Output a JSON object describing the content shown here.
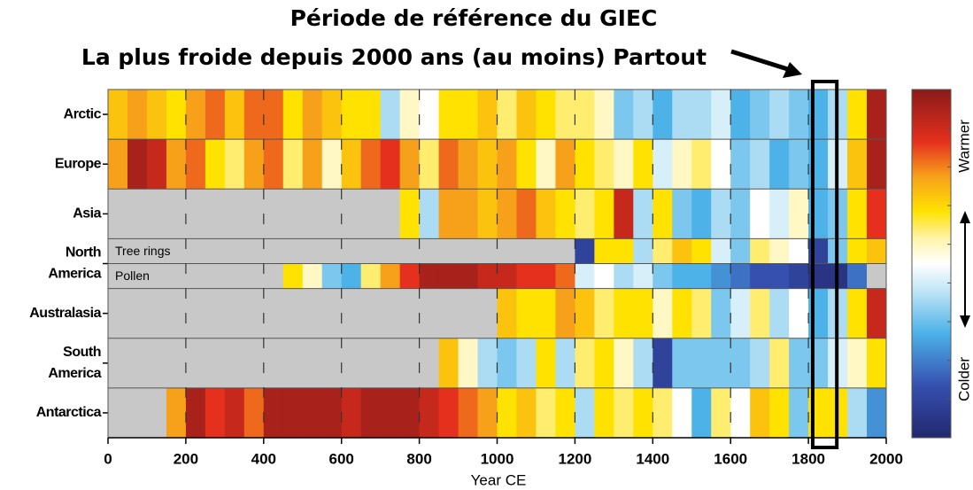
{
  "chart_data": {
    "type": "heatmap",
    "title": "Période de référence du GIEC",
    "subtitle": "La plus froide depuis 2000 ans (au moins) Partout",
    "xlabel": "Year CE",
    "xlim": [
      0,
      2000
    ],
    "xticks": [
      0,
      200,
      400,
      600,
      800,
      1000,
      1200,
      1400,
      1600,
      1800,
      2000
    ],
    "bins": [
      0,
      50,
      100,
      150,
      200,
      250,
      300,
      350,
      400,
      450,
      500,
      550,
      600,
      650,
      700,
      750,
      800,
      850,
      900,
      950,
      1000,
      1050,
      1100,
      1150,
      1200,
      1250,
      1300,
      1350,
      1400,
      1450,
      1500,
      1550,
      1600,
      1650,
      1700,
      1750,
      1800,
      1850,
      1900,
      1950,
      2000
    ],
    "highlight": [
      1811,
      1873
    ],
    "zlim": [
      -1,
      1
    ],
    "colormap": [
      [
        -1,
        "#22286e"
      ],
      [
        -0.7,
        "#3650b0"
      ],
      [
        -0.4,
        "#4cb2e8"
      ],
      [
        -0.15,
        "#c3e7f6"
      ],
      [
        0,
        "#ffffff"
      ],
      [
        0.15,
        "#fff3a6"
      ],
      [
        0.3,
        "#ffe200"
      ],
      [
        0.5,
        "#f7a11b"
      ],
      [
        0.7,
        "#e4301c"
      ],
      [
        1,
        "#8a1a1a"
      ]
    ],
    "no_data_color": "#c8c8c8",
    "colorbar_labels": [
      "Warmer",
      "Colder"
    ],
    "regions": [
      {
        "label": [
          "Arctic"
        ],
        "rows": [
          {
            "values": [
              0.4,
              0.5,
              0.4,
              0.3,
              0.5,
              0.6,
              0.4,
              0.6,
              0.6,
              0.3,
              0.5,
              0.4,
              0.3,
              0.3,
              -0.2,
              0.1,
              0,
              0.3,
              0.3,
              0.4,
              0.2,
              0.4,
              0.3,
              0.2,
              0.2,
              0.1,
              -0.3,
              -0.2,
              -0.4,
              -0.2,
              -0.2,
              -0.1,
              -0.4,
              -0.3,
              -0.2,
              -0.3,
              -0.4,
              -0.2,
              0.3,
              0.9
            ]
          }
        ]
      },
      {
        "label": [
          "Europe"
        ],
        "rows": [
          {
            "values": [
              0.5,
              0.9,
              0.8,
              0.5,
              0.6,
              0.3,
              0.2,
              0.5,
              0.6,
              0.2,
              0.5,
              0.1,
              0.4,
              0.6,
              0.7,
              0.5,
              0.2,
              0.6,
              0.5,
              0.4,
              0.5,
              0.3,
              0.1,
              0.5,
              0.3,
              0.2,
              0.1,
              0.3,
              -0.1,
              0.1,
              0.2,
              0,
              -0.3,
              -0.2,
              -0.4,
              -0.3,
              -0.4,
              -0.1,
              0.4,
              0.9
            ]
          }
        ]
      },
      {
        "label": [
          "Asia"
        ],
        "rows": [
          {
            "values": [
              null,
              null,
              null,
              null,
              null,
              null,
              null,
              null,
              null,
              null,
              null,
              null,
              null,
              null,
              null,
              0.3,
              -0.2,
              0.5,
              0.5,
              0.4,
              0.5,
              0.6,
              0.4,
              0.3,
              0.2,
              0.3,
              0.8,
              -0.2,
              0.3,
              -0.3,
              -0.4,
              -0.2,
              -0.3,
              0,
              -0.1,
              0.1,
              -0.4,
              -0.3,
              0.3,
              0.7
            ]
          }
        ]
      },
      {
        "label": [
          "North",
          "America"
        ],
        "rows": [
          {
            "name": "Tree rings",
            "values": [
              null,
              null,
              null,
              null,
              null,
              null,
              null,
              null,
              null,
              null,
              null,
              null,
              null,
              null,
              null,
              null,
              null,
              null,
              null,
              null,
              null,
              null,
              null,
              null,
              -0.8,
              0.3,
              0.3,
              -0.2,
              0.2,
              0.4,
              0.3,
              -0.1,
              -0.3,
              0.2,
              0.1,
              0,
              -0.8,
              -0.3,
              0.3,
              0.4
            ]
          },
          {
            "name": "Pollen",
            "values": [
              null,
              null,
              null,
              null,
              null,
              null,
              null,
              null,
              null,
              0.3,
              0.1,
              -0.3,
              -0.4,
              0.2,
              0.5,
              0.7,
              0.9,
              0.9,
              0.9,
              0.8,
              0.8,
              0.7,
              0.7,
              0.6,
              -0.1,
              0,
              -0.2,
              -0.1,
              -0.3,
              -0.4,
              -0.4,
              -0.5,
              -0.6,
              -0.7,
              -0.7,
              -0.8,
              -0.9,
              -0.9,
              -0.6,
              null
            ]
          }
        ]
      },
      {
        "label": [
          "Australasia"
        ],
        "rows": [
          {
            "values": [
              null,
              null,
              null,
              null,
              null,
              null,
              null,
              null,
              null,
              null,
              null,
              null,
              null,
              null,
              null,
              null,
              null,
              null,
              null,
              null,
              0.4,
              0.3,
              0.3,
              0.5,
              0.4,
              0.2,
              0.3,
              0.3,
              0.1,
              0.3,
              0.2,
              -0.3,
              -0.1,
              0.2,
              -0.2,
              0,
              -0.4,
              -0.2,
              0.3,
              0.8
            ]
          }
        ]
      },
      {
        "label": [
          "South",
          "America"
        ],
        "rows": [
          {
            "values": [
              null,
              null,
              null,
              null,
              null,
              null,
              null,
              null,
              null,
              null,
              null,
              null,
              null,
              null,
              null,
              null,
              null,
              0.4,
              0.1,
              -0.2,
              -0.3,
              -0.2,
              0.3,
              -0.2,
              0.2,
              0.3,
              0.1,
              -0.2,
              -0.8,
              -0.3,
              -0.3,
              -0.3,
              -0.3,
              -0.2,
              0.2,
              -0.3,
              -0.3,
              -0.1,
              0.1,
              0.3
            ]
          }
        ]
      },
      {
        "label": [
          "Antarctica"
        ],
        "rows": [
          {
            "values": [
              null,
              null,
              null,
              0.5,
              0.9,
              0.7,
              0.8,
              0.6,
              0.9,
              0.9,
              0.9,
              0.9,
              0.8,
              0.9,
              0.9,
              0.9,
              0.8,
              0.7,
              0.6,
              0.5,
              0.3,
              0.4,
              0.2,
              0.3,
              -0.2,
              0.3,
              0.2,
              0.3,
              0.2,
              0,
              -0.4,
              0.2,
              0,
              0.4,
              0.3,
              -0.3,
              0.3,
              0.3,
              -0.2,
              -0.5
            ]
          }
        ]
      }
    ]
  }
}
